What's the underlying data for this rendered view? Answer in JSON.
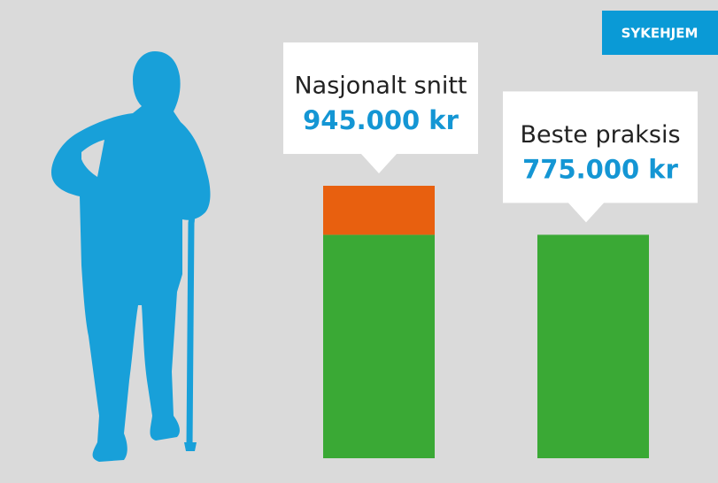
{
  "chart_data": {
    "type": "stacked-bar",
    "badge": "SYKEHJEM",
    "categories": [
      "Nasjonalt snitt",
      "Beste praksis"
    ],
    "values": [
      945000,
      775000
    ],
    "value_labels": [
      "945.000 kr",
      "775.000 kr"
    ],
    "series": [
      {
        "color": "#3aa935",
        "values": [
          775000,
          775000
        ]
      },
      {
        "color": "#e8600f",
        "values": [
          170000,
          null
        ]
      }
    ]
  }
}
